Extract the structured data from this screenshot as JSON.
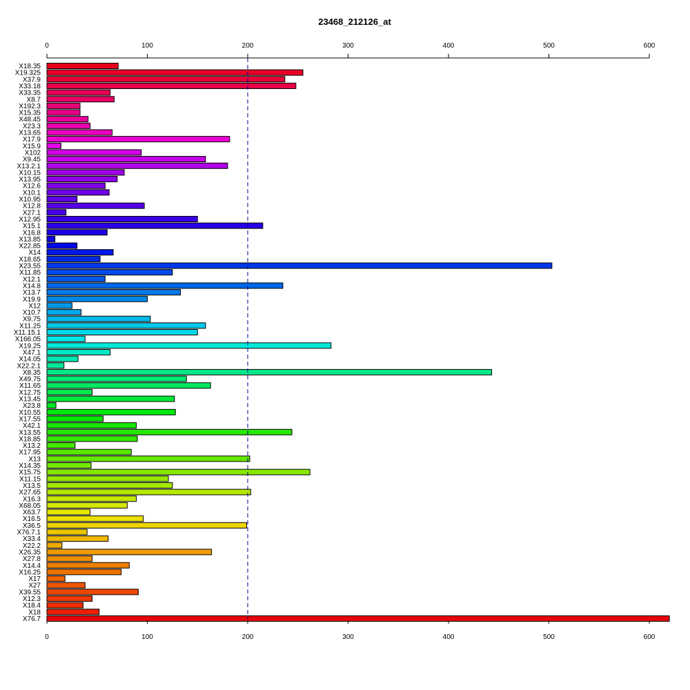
{
  "chart_data": {
    "type": "bar",
    "orientation": "horizontal",
    "title": "23468_212126_at",
    "xlabel": "",
    "ylabel": "",
    "xlim": [
      0,
      620
    ],
    "ticks": [
      0,
      100,
      200,
      300,
      400,
      500,
      600
    ],
    "tick_labels": [
      "0",
      "100",
      "200",
      "300",
      "400",
      "500",
      "600"
    ],
    "reference_line": 200,
    "reference_line_color": "#00008b",
    "categories": [
      "X18.35",
      "X19.325",
      "X37.9",
      "X33.18",
      "X33.35",
      "X8.7",
      "X192.3",
      "X15.35",
      "X48.45",
      "X23.3",
      "X13.65",
      "X17.9",
      "X15.9",
      "X102",
      "X9.45",
      "X13.2.1",
      "X10.15",
      "X13.95",
      "X12.6",
      "X10.1",
      "X10.95",
      "X12.8",
      "X27.1",
      "X12.95",
      "X15.1",
      "X16.8",
      "X13.85",
      "X22.85",
      "X14",
      "X18.65",
      "X23.55",
      "X11.85",
      "X12.1",
      "X14.8",
      "X13.7",
      "X19.9",
      "X12",
      "X10.7",
      "X9.75",
      "X11.25",
      "X11.15.1",
      "X166.05",
      "X19.25",
      "X47.1",
      "X14.05",
      "X22.2.1",
      "X8.35",
      "X49.75",
      "X11.65",
      "X12.75",
      "X13.45",
      "X23.8",
      "X10.55",
      "X17.55",
      "X42.1",
      "X13.55",
      "X18.85",
      "X13.2",
      "X17.95",
      "X13",
      "X14.35",
      "X15.75",
      "X11.15",
      "X13.5",
      "X27.65",
      "X16.3",
      "X68.05",
      "X63.7",
      "X16.5",
      "X36.5",
      "X76.7.1",
      "X33.4",
      "X22.2",
      "X26.35",
      "X27.8",
      "X14.4",
      "X16.25",
      "X17",
      "X27",
      "X39.55",
      "X12.3",
      "X18.4",
      "X18",
      "X76.7"
    ],
    "values": [
      71,
      255,
      237,
      248,
      63,
      67,
      33,
      33,
      41,
      43,
      65,
      182,
      14,
      94,
      158,
      180,
      77,
      70,
      58,
      62,
      30,
      97,
      19,
      150,
      215,
      60,
      8,
      30,
      66,
      53,
      503,
      125,
      58,
      235,
      133,
      100,
      25,
      34,
      103,
      158,
      150,
      38,
      283,
      63,
      31,
      17,
      443,
      139,
      163,
      45,
      127,
      9,
      128,
      56,
      89,
      244,
      90,
      28,
      84,
      202,
      44,
      262,
      121,
      125,
      203,
      89,
      80,
      43,
      96,
      199,
      40,
      61,
      15,
      164,
      45,
      82,
      74,
      18,
      38,
      91,
      45,
      36,
      52,
      620
    ],
    "colors": [
      "#e8001a",
      "#e80029",
      "#e80038",
      "#e80047",
      "#e80057",
      "#e80066",
      "#e80077",
      "#e80088",
      "#e80099",
      "#e800ab",
      "#e800be",
      "#ea00d1",
      "#e100e8",
      "#d200e8",
      "#c100e8",
      "#b000e8",
      "#a000e8",
      "#9000e8",
      "#8000e8",
      "#7000e8",
      "#6200e8",
      "#5400e8",
      "#4600e8",
      "#3800e8",
      "#2a00e8",
      "#1c00e8",
      "#0e00e8",
      "#0008e8",
      "#0018e8",
      "#0028e8",
      "#0038e8",
      "#0048e8",
      "#0058e8",
      "#0068e8",
      "#0078e8",
      "#0088e8",
      "#0098e8",
      "#00a8e8",
      "#00b8e8",
      "#00c8e8",
      "#00d8e8",
      "#00e8e8",
      "#00e8d8",
      "#00e8c4",
      "#00e8b0",
      "#00e89c",
      "#00e888",
      "#00e874",
      "#00e860",
      "#00e84c",
      "#00e838",
      "#00e824",
      "#00e810",
      "#06e800",
      "#16e800",
      "#26e800",
      "#36e800",
      "#46e800",
      "#56e800",
      "#66e800",
      "#76e800",
      "#86e800",
      "#96e800",
      "#a6e800",
      "#b6e800",
      "#c6e800",
      "#d6e800",
      "#e6e800",
      "#ece000",
      "#eed400",
      "#eec600",
      "#eeb800",
      "#eeaa00",
      "#ee9c00",
      "#ee8e00",
      "#ee8000",
      "#ee7200",
      "#ee6400",
      "#ee5600",
      "#ee4800",
      "#ee3a00",
      "#ee2c00",
      "#ee1e00",
      "#e8000e"
    ]
  }
}
